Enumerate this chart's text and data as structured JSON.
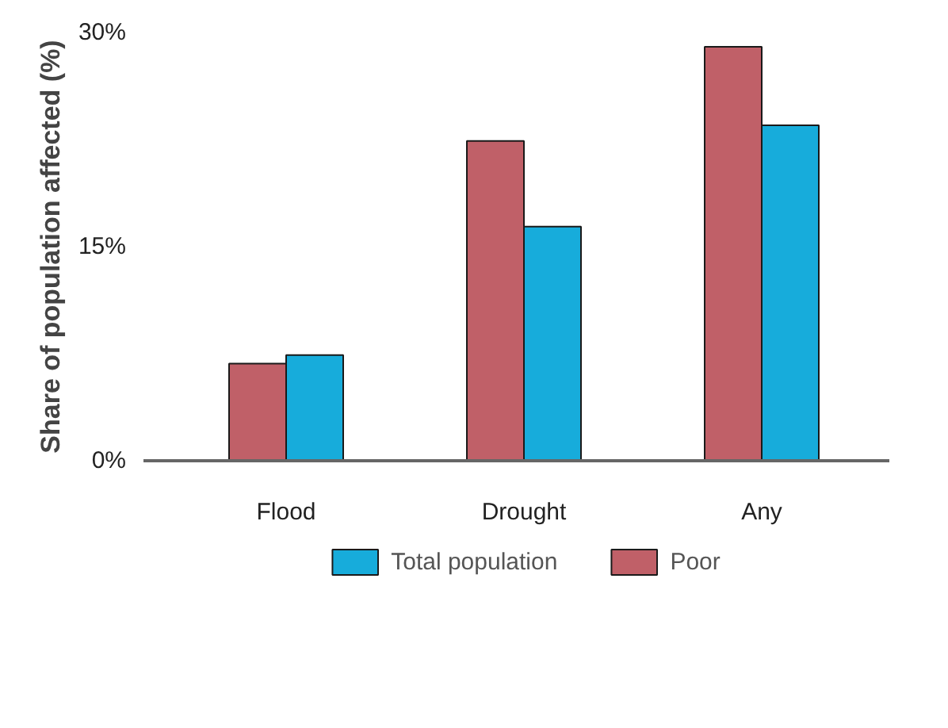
{
  "chart_data": {
    "type": "bar",
    "ylabel": "Share of population affected (%)",
    "categories": [
      "Flood",
      "Drought",
      "Any"
    ],
    "series": [
      {
        "name": "Poor",
        "color": "#c06068",
        "values": [
          6.8,
          22.4,
          29.0
        ]
      },
      {
        "name": "Total population",
        "color": "#17acdb",
        "values": [
          7.4,
          16.4,
          23.5
        ]
      }
    ],
    "ylim": [
      0,
      30
    ],
    "yticks": [
      {
        "value": 0,
        "label": "0%"
      },
      {
        "value": 15,
        "label": "15%"
      },
      {
        "value": 30,
        "label": "30%"
      }
    ],
    "grid": false,
    "legend": "bottom"
  }
}
